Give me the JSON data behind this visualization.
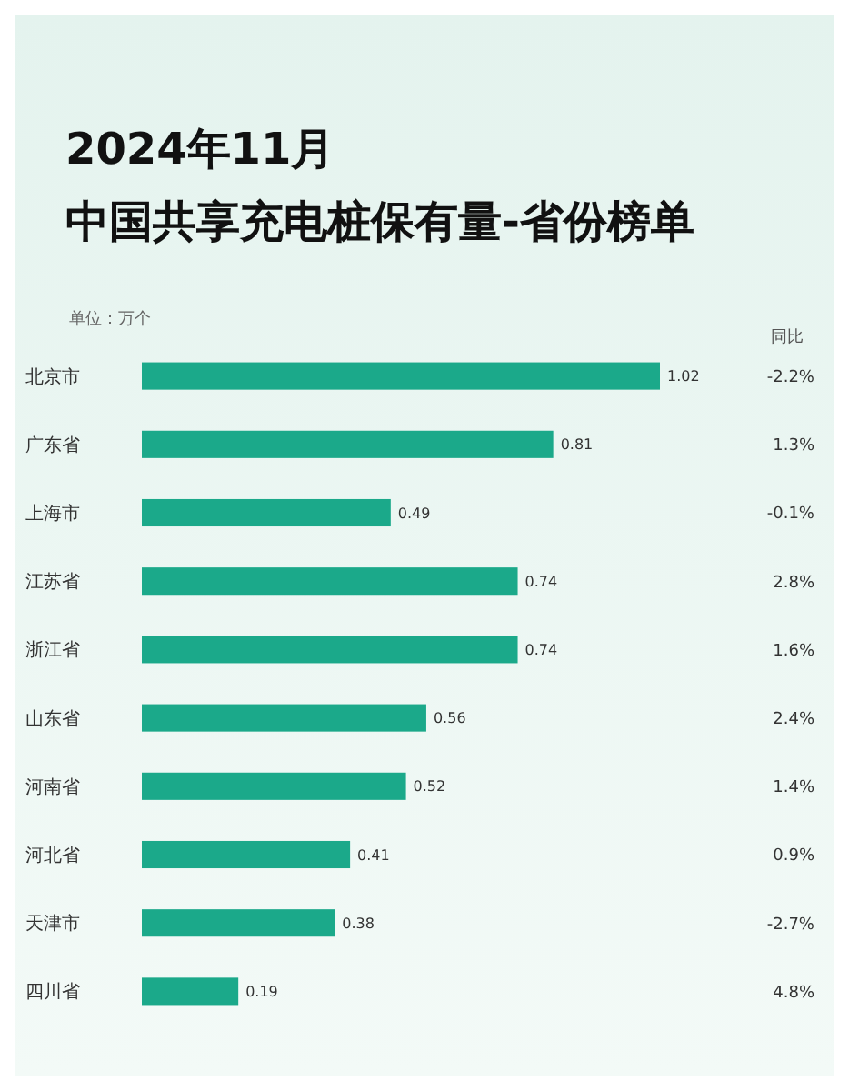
{
  "chart_data": {
    "type": "bar",
    "orientation": "horizontal",
    "title": "2024年11月",
    "subtitle": "中国共享充电桩保有量-省份榜单",
    "categories": [
      "北京市",
      "广东省",
      "上海市",
      "江苏省",
      "浙江省",
      "山东省",
      "河南省",
      "河北省",
      "天津市",
      "四川省"
    ],
    "values": [
      1.02,
      0.81,
      0.49,
      0.74,
      0.74,
      0.56,
      0.52,
      0.41,
      0.38,
      0.19
    ],
    "color": "#1ba98a",
    "data_labels": true,
    "annotations": [
      "单位：万个",
      "同比",
      "-2.2%",
      "1.3%",
      "-0.1%",
      "2.8%",
      "1.6%",
      "2.4%",
      "1.4%",
      "0.9%",
      "-2.7%",
      "4.8%"
    ]
  }
}
